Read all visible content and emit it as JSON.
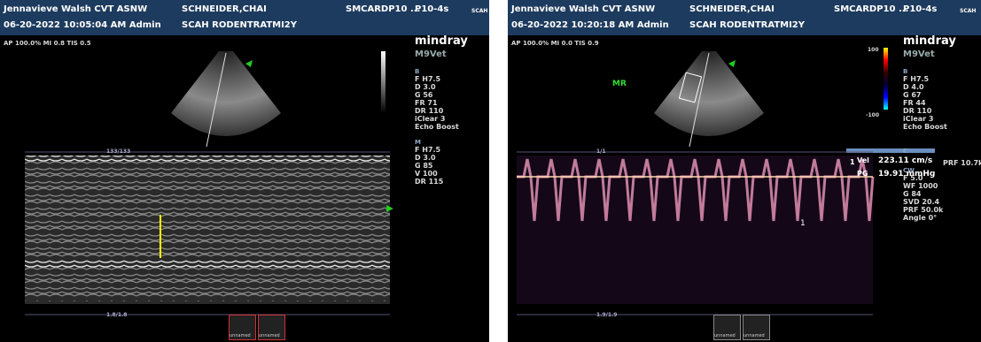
{
  "panels": [
    {
      "header": {
        "operator": "Jennavieve Walsh CVT ASNW",
        "patient": "SCHNEIDER,CHAI",
        "study": "SMCARDP10 ...",
        "probe": "P10-4s",
        "extra": "SCAH",
        "datetime": "06-20-2022 10:05:04 AM Admin",
        "exam": "SCAH RODENTRATMI2Y"
      },
      "acoustic": "AP 100.0% MI 0.8 TIS 0.5",
      "logo": "mindray",
      "model": "M9Vet",
      "params": [
        {
          "label": "B",
          "items": [
            "F H7.5",
            "D 3.0",
            "G 56",
            "FR 71",
            "DR 110",
            "iClear 3",
            "Echo Boost"
          ]
        },
        {
          "label": "M",
          "items": [
            "F H7.5",
            "D 3.0",
            "G 85",
            "V 100",
            "DR 115"
          ]
        }
      ],
      "top_counter": "133/133",
      "bottom_counter": "1.8/1.8",
      "thumbnails": [
        "unnamed",
        "unnamed"
      ]
    },
    {
      "header": {
        "operator": "Jennavieve Walsh CVT ASNW",
        "patient": "SCHNEIDER,CHAI",
        "study": "SMCARDP10 ...",
        "probe": "P10-4s",
        "extra": "SCAH",
        "datetime": "06-20-2022 10:20:18 AM Admin",
        "exam": "SCAH RODENTRATMI2Y"
      },
      "acoustic": "AP 100.0% MI 0.0 TIS 0.9",
      "logo": "mindray",
      "model": "M9Vet",
      "params": [
        {
          "label": "B",
          "items": [
            "F H7.5",
            "D 4.0",
            "G 67",
            "FR 44",
            "DR 110",
            "iClear 3",
            "Echo Boost"
          ]
        },
        {
          "label": "C",
          "items": [
            "PRF 10.7k"
          ]
        },
        {
          "label": "CW",
          "items": [
            "F 5.0",
            "WF 1000",
            "G 84",
            "SVD 20.4",
            "PRF 50.0k",
            "Angle 0°"
          ]
        }
      ],
      "top_counter": "1/1",
      "bottom_counter": "1.9/1.9",
      "thumbnails": [
        "unnamed",
        "unnamed"
      ],
      "annotation": "MR",
      "color_scale": {
        "max": "100",
        "min": "-100"
      },
      "measurement": {
        "index": "1",
        "vel_label": "Vel",
        "vel_value": "223.11 cm/s",
        "pg_label": "PG",
        "pg_value": "19.91 mmHg",
        "cursor_label": "1"
      }
    }
  ]
}
